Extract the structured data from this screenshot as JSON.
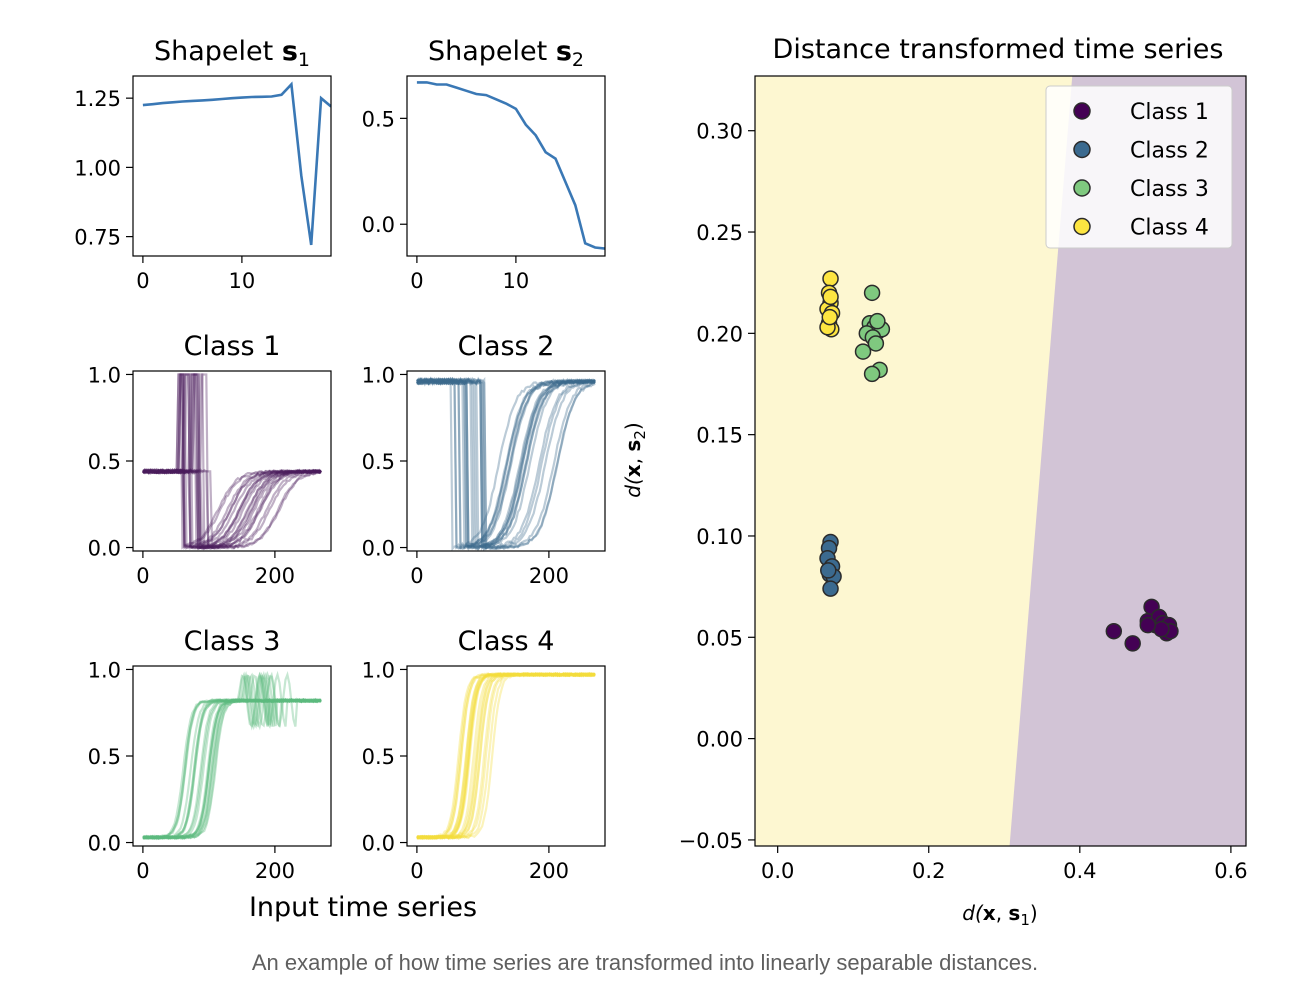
{
  "caption": "An example of how time series are transformed into linearly separable distances.",
  "chart_data": [
    {
      "type": "line",
      "title": "Shapelet s₁",
      "title_prefix": "Shapelet ",
      "title_symbol": "s",
      "title_subscript": "1",
      "x_ticks": [
        "0",
        "10"
      ],
      "y_ticks": [
        "0.75",
        "1.00",
        "1.25"
      ],
      "xlim": [
        -1,
        19
      ],
      "ylim": [
        0.68,
        1.33
      ],
      "color": "#3a78b5",
      "x": [
        0,
        1,
        2,
        3,
        4,
        5,
        6,
        7,
        8,
        9,
        10,
        11,
        12,
        13,
        14,
        15,
        16,
        17,
        18,
        19
      ],
      "y": [
        1.225,
        1.228,
        1.232,
        1.235,
        1.238,
        1.24,
        1.242,
        1.244,
        1.247,
        1.25,
        1.252,
        1.254,
        1.255,
        1.256,
        1.262,
        1.3,
        0.97,
        0.72,
        1.25,
        1.22
      ]
    },
    {
      "type": "line",
      "title": "Shapelet s₂",
      "title_prefix": "Shapelet ",
      "title_symbol": "s",
      "title_subscript": "2",
      "x_ticks": [
        "0",
        "10"
      ],
      "y_ticks": [
        "0.0",
        "0.5"
      ],
      "xlim": [
        -1,
        19
      ],
      "ylim": [
        -0.15,
        0.7
      ],
      "color": "#3a78b5",
      "x": [
        0,
        1,
        2,
        3,
        4,
        5,
        6,
        7,
        8,
        9,
        10,
        11,
        12,
        13,
        14,
        15,
        16,
        17,
        18,
        19
      ],
      "y": [
        0.67,
        0.67,
        0.66,
        0.66,
        0.645,
        0.63,
        0.615,
        0.61,
        0.59,
        0.57,
        0.545,
        0.47,
        0.42,
        0.34,
        0.31,
        0.2,
        0.09,
        -0.09,
        -0.11,
        -0.115
      ]
    },
    {
      "type": "line",
      "title": "Class 1",
      "x_ticks": [
        "0",
        "200"
      ],
      "y_ticks": [
        "0.0",
        "0.5",
        "1.0"
      ],
      "xlim": [
        -15,
        285
      ],
      "ylim": [
        -0.02,
        1.02
      ],
      "color": "#4b1d5c",
      "pattern": "class1"
    },
    {
      "type": "line",
      "title": "Class 2",
      "x_ticks": [
        "0",
        "200"
      ],
      "y_ticks": [
        "0.0",
        "0.5",
        "1.0"
      ],
      "xlim": [
        -15,
        285
      ],
      "ylim": [
        -0.02,
        1.02
      ],
      "color": "#3d6b8c",
      "pattern": "class2"
    },
    {
      "type": "line",
      "title": "Class 3",
      "x_ticks": [
        "0",
        "200"
      ],
      "y_ticks": [
        "0.0",
        "0.5",
        "1.0"
      ],
      "xlim": [
        -15,
        285
      ],
      "ylim": [
        -0.02,
        1.02
      ],
      "color": "#5dba7f",
      "pattern": "class3"
    },
    {
      "type": "line",
      "title": "Class 4",
      "x_ticks": [
        "0",
        "200"
      ],
      "y_ticks": [
        "0.0",
        "0.5",
        "1.0"
      ],
      "xlim": [
        -15,
        285
      ],
      "ylim": [
        -0.02,
        1.02
      ],
      "color": "#f4dc3c",
      "pattern": "class4"
    },
    {
      "type": "scatter",
      "title": "Distance transformed time series",
      "xlabel_prefix": "d(",
      "xlabel_symbol_x": "x",
      "xlabel_symbol_s": "s",
      "xlabel_subscript": "1",
      "ylabel_subscript": "2",
      "xlim": [
        -0.03,
        0.62
      ],
      "ylim": [
        -0.053,
        0.327
      ],
      "x_ticks": [
        0.0,
        0.2,
        0.4,
        0.6
      ],
      "x_tick_labels": [
        "0.0",
        "0.2",
        "0.4",
        "0.6"
      ],
      "y_ticks": [
        -0.05,
        0.0,
        0.05,
        0.1,
        0.15,
        0.2,
        0.25,
        0.3
      ],
      "y_tick_labels": [
        "−0.05",
        "0.00",
        "0.05",
        "0.10",
        "0.15",
        "0.20",
        "0.25",
        "0.30"
      ],
      "grid": false,
      "legend_placement": "top-right",
      "background_regions": [
        {
          "color": "#fdf7d1",
          "side": "left"
        },
        {
          "color": "#d2c4d6",
          "side": "right"
        }
      ],
      "decision_boundary": [
        [
          0.307,
          -0.053
        ],
        [
          0.39,
          0.327
        ]
      ],
      "series": [
        {
          "name": "Class 1",
          "color": "#440154",
          "points": [
            [
              0.445,
              0.053
            ],
            [
              0.47,
              0.047
            ],
            [
              0.49,
              0.058
            ],
            [
              0.495,
              0.065
            ],
            [
              0.5,
              0.056
            ],
            [
              0.505,
              0.06
            ],
            [
              0.51,
              0.057
            ],
            [
              0.512,
              0.054
            ],
            [
              0.515,
              0.052
            ],
            [
              0.518,
              0.056
            ],
            [
              0.52,
              0.053
            ],
            [
              0.508,
              0.054
            ],
            [
              0.49,
              0.056
            ]
          ]
        },
        {
          "name": "Class 2",
          "color": "#3b6a8f",
          "points": [
            [
              0.07,
              0.097
            ],
            [
              0.068,
              0.094
            ],
            [
              0.066,
              0.089
            ],
            [
              0.072,
              0.085
            ],
            [
              0.069,
              0.081
            ],
            [
              0.074,
              0.08
            ],
            [
              0.067,
              0.083
            ],
            [
              0.07,
              0.074
            ]
          ]
        },
        {
          "name": "Class 3",
          "color": "#7fc97f",
          "points": [
            [
              0.125,
              0.22
            ],
            [
              0.122,
              0.205
            ],
            [
              0.128,
              0.203
            ],
            [
              0.133,
              0.201
            ],
            [
              0.138,
              0.202
            ],
            [
              0.118,
              0.2
            ],
            [
              0.126,
              0.198
            ],
            [
              0.113,
              0.191
            ],
            [
              0.13,
              0.195
            ],
            [
              0.135,
              0.182
            ],
            [
              0.125,
              0.18
            ],
            [
              0.132,
              0.206
            ]
          ]
        },
        {
          "name": "Class 4",
          "color": "#fde541",
          "points": [
            [
              0.07,
              0.227
            ],
            [
              0.068,
              0.22
            ],
            [
              0.07,
              0.215
            ],
            [
              0.066,
              0.212
            ],
            [
              0.072,
              0.21
            ],
            [
              0.068,
              0.205
            ],
            [
              0.071,
              0.202
            ],
            [
              0.066,
              0.203
            ],
            [
              0.07,
              0.218
            ],
            [
              0.069,
              0.208
            ]
          ]
        }
      ]
    }
  ],
  "shared_xlabel": "Input time series"
}
